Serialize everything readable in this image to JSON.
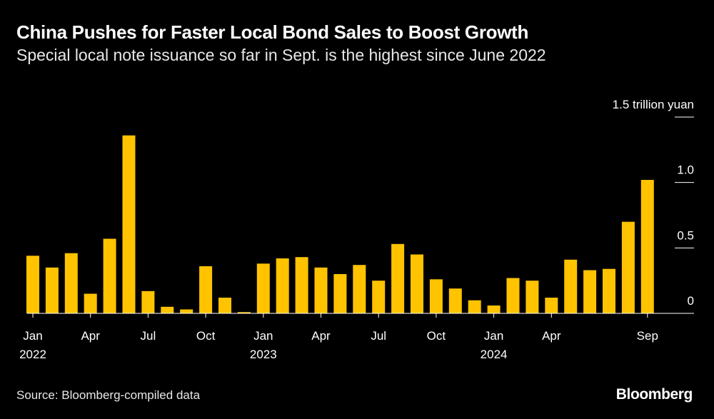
{
  "title": "China Pushes for Faster Local Bond Sales to Boost Growth",
  "subtitle": "Special local note issuance so far in Sept. is the highest since June 2022",
  "source": "Source: Bloomberg-compiled data",
  "logo": "Bloomberg",
  "colors": {
    "bar": "#FFC300",
    "background": "#000000",
    "text": "#FFFFFF",
    "axis": "#FFFFFF"
  },
  "chart_data": {
    "type": "bar",
    "unit_label": "trillion yuan",
    "ylim": [
      0,
      1.5
    ],
    "y_ticks": [
      {
        "value": 0,
        "label": "0"
      },
      {
        "value": 0.5,
        "label": "0.5"
      },
      {
        "value": 1.0,
        "label": "1.0"
      },
      {
        "value": 1.5,
        "label": "1.5 trillion yuan"
      }
    ],
    "categories": [
      "2022-01",
      "2022-02",
      "2022-03",
      "2022-04",
      "2022-05",
      "2022-06",
      "2022-07",
      "2022-08",
      "2022-09",
      "2022-10",
      "2022-11",
      "2022-12",
      "2023-01",
      "2023-02",
      "2023-03",
      "2023-04",
      "2023-05",
      "2023-06",
      "2023-07",
      "2023-08",
      "2023-09",
      "2023-10",
      "2023-11",
      "2023-12",
      "2024-01",
      "2024-02",
      "2024-03",
      "2024-04",
      "2024-05",
      "2024-06",
      "2024-07",
      "2024-08",
      "2024-09"
    ],
    "values": [
      0.44,
      0.35,
      0.46,
      0.15,
      0.57,
      1.36,
      0.17,
      0.05,
      0.03,
      0.36,
      0.12,
      0.01,
      0.38,
      0.42,
      0.43,
      0.35,
      0.3,
      0.37,
      0.25,
      0.53,
      0.45,
      0.26,
      0.19,
      0.1,
      0.06,
      0.27,
      0.25,
      0.12,
      0.41,
      0.33,
      0.34,
      0.7,
      1.02
    ],
    "x_ticks": [
      {
        "index": 0,
        "label": "Jan",
        "year": "2022"
      },
      {
        "index": 3,
        "label": "Apr",
        "year": ""
      },
      {
        "index": 6,
        "label": "Jul",
        "year": ""
      },
      {
        "index": 9,
        "label": "Oct",
        "year": ""
      },
      {
        "index": 12,
        "label": "Jan",
        "year": "2023"
      },
      {
        "index": 15,
        "label": "Apr",
        "year": ""
      },
      {
        "index": 18,
        "label": "Jul",
        "year": ""
      },
      {
        "index": 21,
        "label": "Oct",
        "year": ""
      },
      {
        "index": 24,
        "label": "Jan",
        "year": "2024"
      },
      {
        "index": 27,
        "label": "Apr",
        "year": ""
      },
      {
        "index": 32,
        "label": "Sep",
        "year": ""
      }
    ],
    "grid": false,
    "y_axis_side": "right"
  }
}
